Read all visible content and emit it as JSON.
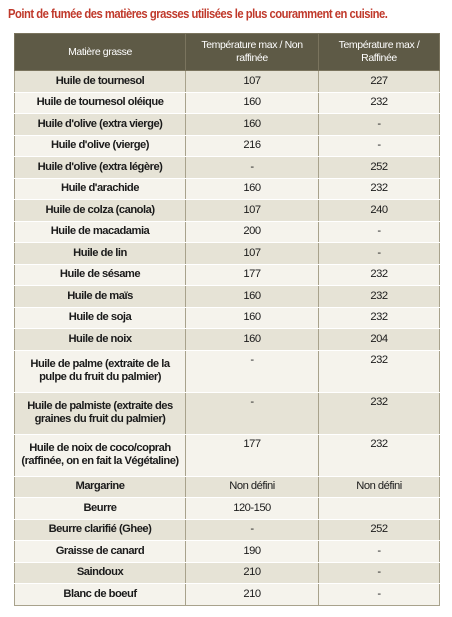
{
  "title": "Point de fumée des matières grasses utilisées le plus couramment en cuisine.",
  "table": {
    "headers": [
      "Matière grasse",
      "Température max / Non raffinée",
      "Température max / Raffinée"
    ],
    "rows": [
      [
        "Huile de tournesol",
        "107",
        "227"
      ],
      [
        "Huile de tournesol oléique",
        "160",
        "232"
      ],
      [
        "Huile d'olive (extra vierge)",
        "160",
        "-"
      ],
      [
        "Huile d'olive (vierge)",
        "216",
        "-"
      ],
      [
        "Huile d'olive (extra légère)",
        "-",
        "252"
      ],
      [
        "Huile d'arachide",
        "160",
        "232"
      ],
      [
        "Huile de colza (canola)",
        "107",
        "240"
      ],
      [
        "Huile de macadamia",
        "200",
        "-"
      ],
      [
        "Huile de lin",
        "107",
        "-"
      ],
      [
        "Huile de sésame",
        "177",
        "232"
      ],
      [
        "Huile de maïs",
        "160",
        "232"
      ],
      [
        "Huile de soja",
        "160",
        "232"
      ],
      [
        "Huile de noix",
        "160",
        "204"
      ],
      [
        "Huile de palme (extraite de la pulpe du fruit du palmier)",
        "-",
        "232"
      ],
      [
        "Huile de palmiste (extraite des graines du fruit du palmier)",
        "-",
        "232"
      ],
      [
        "Huile de noix de coco/coprah (raffinée, on en fait la Végétaline)",
        "177",
        "232"
      ],
      [
        "Margarine",
        "Non défini",
        "Non défini"
      ],
      [
        "Beurre",
        "120-150",
        ""
      ],
      [
        "Beurre clarifié (Ghee)",
        "-",
        "252"
      ],
      [
        "Graisse de canard",
        "190",
        "-"
      ],
      [
        "Saindoux",
        "210",
        "-"
      ],
      [
        "Blanc de boeuf",
        "210",
        "-"
      ]
    ]
  }
}
